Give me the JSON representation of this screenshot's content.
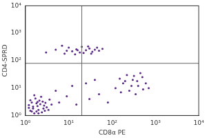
{
  "chart_data": {
    "type": "scatter",
    "x_label": "CD8α PE",
    "y_label": "CD4-SPRD",
    "log": true,
    "grid": false,
    "color": "#5b2a86",
    "marker": "circle",
    "xlim": [
      1,
      10000
    ],
    "ylim": [
      1,
      10000
    ],
    "xticks": [
      {
        "value": 1,
        "label": "10⁰"
      },
      {
        "value": 10,
        "label": "10¹"
      },
      {
        "value": 100,
        "label": "10²"
      },
      {
        "value": 1000,
        "label": "10³"
      },
      {
        "value": 10000,
        "label": "10⁴"
      }
    ],
    "yticks": [
      {
        "value": 1,
        "label": "10⁰"
      },
      {
        "value": 10,
        "label": "10¹"
      },
      {
        "value": 100,
        "label": "10²"
      },
      {
        "value": 1000,
        "label": "10³"
      },
      {
        "value": 10000,
        "label": "10⁴"
      }
    ],
    "gates": {
      "x": 20,
      "y": 80
    },
    "x": [
      1.3,
      1.5,
      1.8,
      2.2,
      1.4,
      2.6,
      1.9,
      1.6,
      2.9,
      1.2,
      2.1,
      3.4,
      1.7,
      2.4,
      1.5,
      2.0,
      2.7,
      1.3,
      3.1,
      1.8,
      2.3,
      1.4,
      4.0,
      2.5,
      1.6,
      3.6,
      2.0,
      1.2,
      2.8,
      1.9,
      6,
      9,
      15,
      30,
      50,
      12,
      5,
      25,
      80,
      40,
      120,
      180,
      250,
      300,
      400,
      500,
      220,
      350,
      600,
      150,
      280,
      450,
      200,
      320,
      700,
      380,
      160,
      520,
      3,
      5,
      8,
      10,
      12,
      15,
      18,
      20,
      25,
      30,
      35,
      40,
      50,
      60,
      7,
      14,
      22,
      28,
      45,
      9,
      16,
      33
    ],
    "values": [
      1.5,
      2.1,
      1.4,
      2.6,
      3.0,
      1.8,
      2.2,
      1.2,
      2.9,
      2.4,
      3.5,
      1.6,
      4.2,
      1.3,
      1.8,
      1.6,
      2.3,
      3.6,
      2.0,
      2.8,
      4.8,
      1.4,
      2.5,
      3.2,
      5.5,
      3.8,
      1.2,
      1.9,
      1.5,
      3.1,
      3,
      5,
      2.5,
      4,
      6,
      12,
      8,
      15,
      3,
      20,
      10,
      15,
      8,
      20,
      12,
      25,
      30,
      6,
      15,
      22,
      12,
      35,
      18,
      28,
      10,
      18,
      7,
      9,
      200,
      250,
      180,
      300,
      220,
      260,
      200,
      320,
      240,
      280,
      210,
      250,
      230,
      270,
      350,
      170,
      190,
      330,
      300,
      230,
      240,
      180
    ]
  }
}
